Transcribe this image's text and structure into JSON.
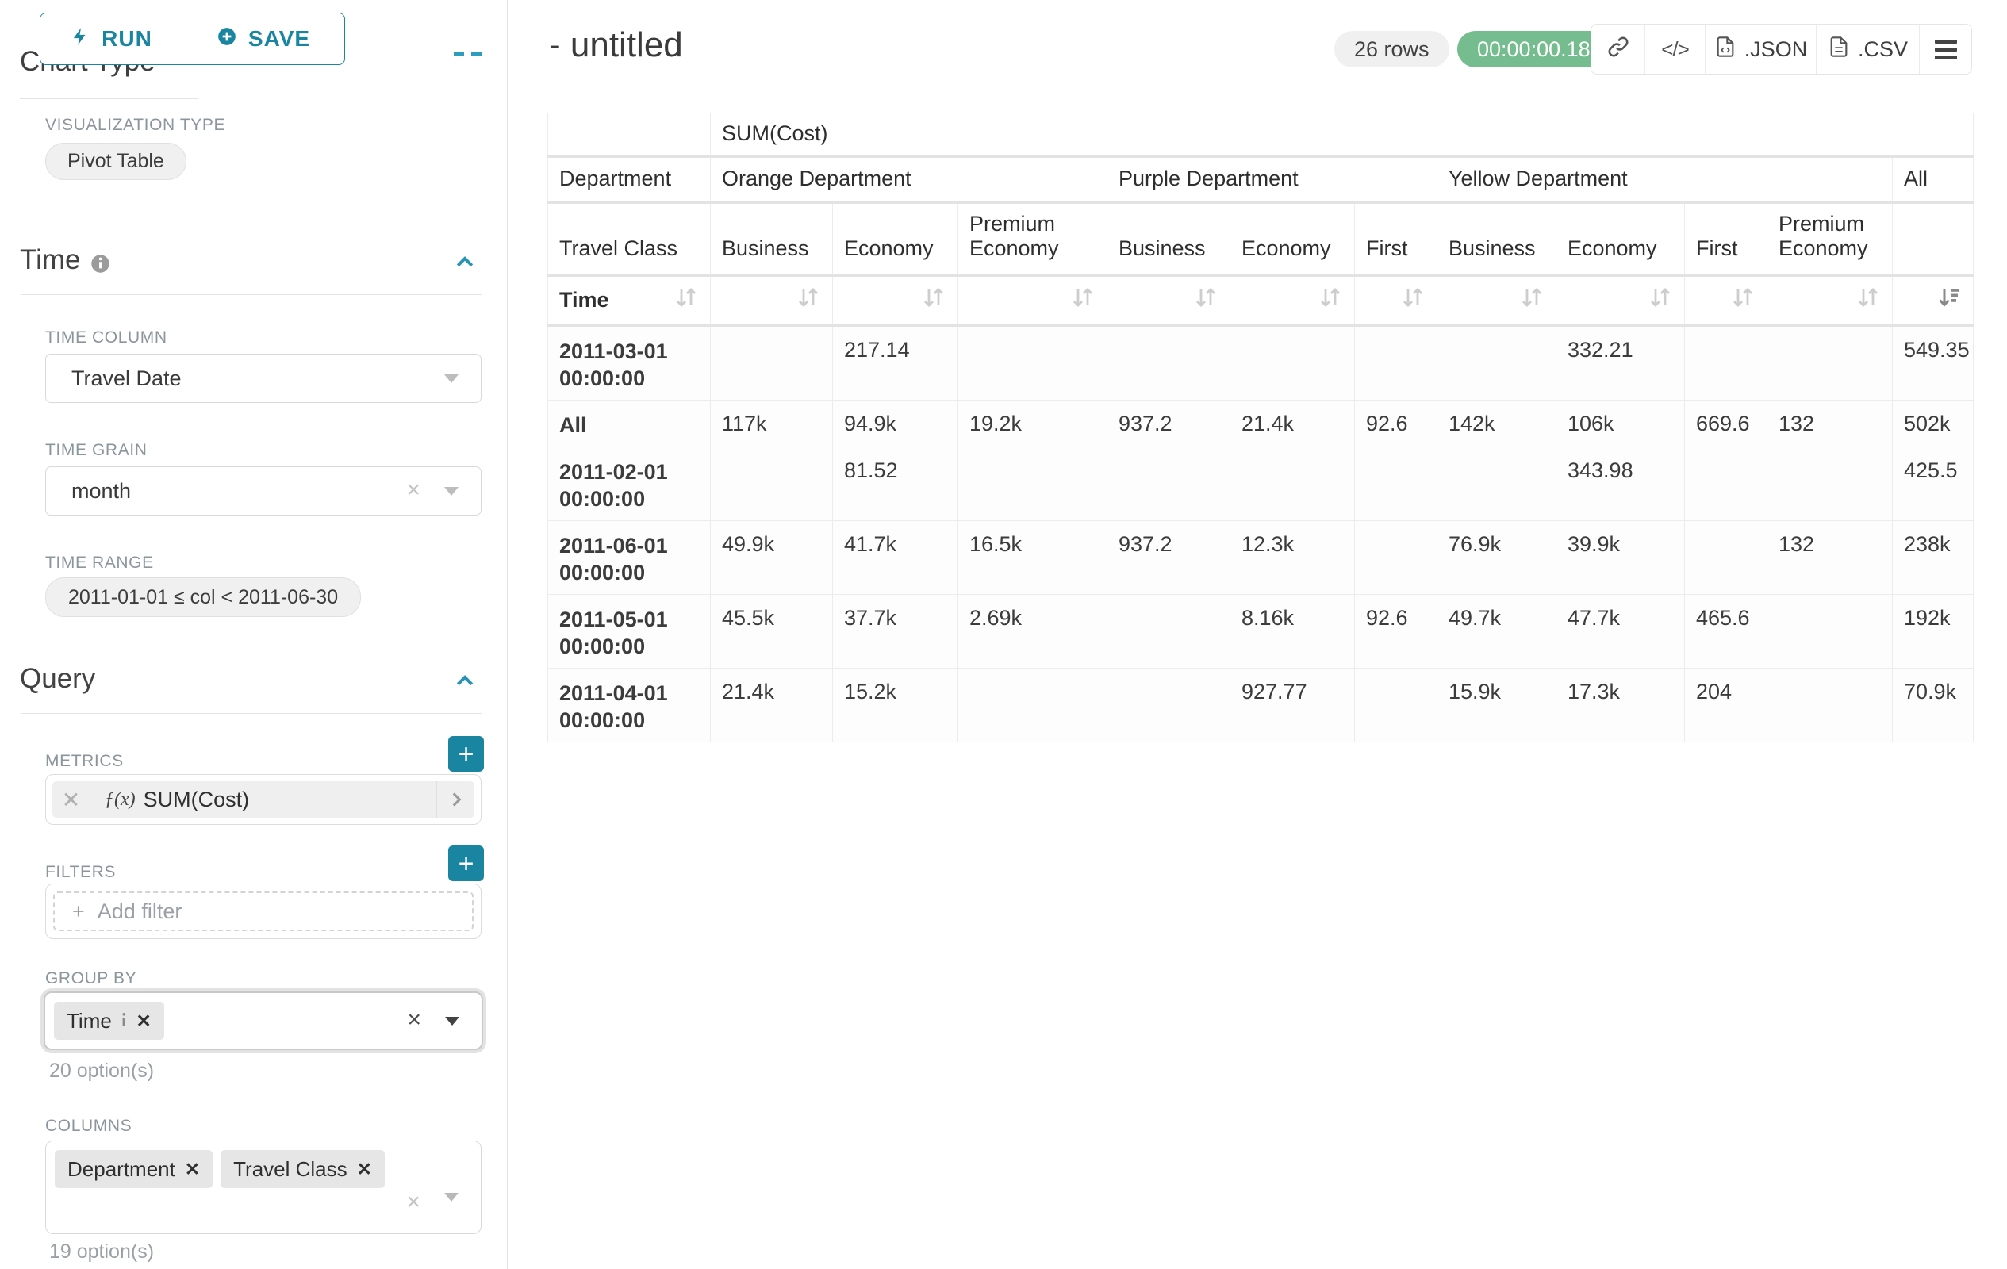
{
  "colors": {
    "accent_teal": "#1a85a0",
    "timer_green": "#75bd8e"
  },
  "sidebar": {
    "run_button": "RUN",
    "save_button": "SAVE",
    "chart_type_heading": "Chart Type",
    "visualization_type_label": "VISUALIZATION TYPE",
    "visualization_type_value": "Pivot Table",
    "time": {
      "heading": "Time",
      "time_column_label": "TIME COLUMN",
      "time_column_value": "Travel Date",
      "time_grain_label": "TIME GRAIN",
      "time_grain_value": "month",
      "time_range_label": "TIME RANGE",
      "time_range_value": "2011-01-01 ≤ col < 2011-06-30"
    },
    "query": {
      "heading": "Query",
      "metrics_label": "METRICS",
      "metric_fx": "ƒ(x)",
      "metric_value": "SUM(Cost)",
      "filters_label": "FILTERS",
      "add_filter_placeholder": "Add filter",
      "group_by_label": "GROUP BY",
      "group_by_tags": [
        "Time"
      ],
      "group_by_options_hint": "20 option(s)",
      "columns_label": "COLUMNS",
      "columns_tags": [
        "Department",
        "Travel Class"
      ],
      "columns_options_hint": "19 option(s)"
    }
  },
  "header": {
    "title": "- untitled",
    "row_count_badge": "26 rows",
    "timer_badge": "00:00:00.18",
    "json_export_label": ".JSON",
    "csv_export_label": ".CSV"
  },
  "pivot_table": {
    "metric_header": "SUM(Cost)",
    "row_dimension": "Department",
    "row_subdimension": "Travel Class",
    "time_label": "Time",
    "col_groups": [
      {
        "label": "Orange Department",
        "children": [
          "Business",
          "Economy",
          "Premium Economy"
        ]
      },
      {
        "label": "Purple Department",
        "children": [
          "Business",
          "Economy",
          "First"
        ]
      },
      {
        "label": "Yellow Department",
        "children": [
          "Business",
          "Economy",
          "First",
          "Premium Economy"
        ]
      },
      {
        "label": "All",
        "children": [
          ""
        ]
      }
    ],
    "sorted_column_index": 10,
    "rows": [
      {
        "label": "2011-03-01 00:00:00",
        "values": [
          "",
          "217.14",
          "",
          "",
          "",
          "",
          "",
          "332.21",
          "",
          "",
          "549.35"
        ]
      },
      {
        "label": "All",
        "values": [
          "117k",
          "94.9k",
          "19.2k",
          "937.2",
          "21.4k",
          "92.6",
          "142k",
          "106k",
          "669.6",
          "132",
          "502k"
        ]
      },
      {
        "label": "2011-02-01 00:00:00",
        "values": [
          "",
          "81.52",
          "",
          "",
          "",
          "",
          "",
          "343.98",
          "",
          "",
          "425.5"
        ]
      },
      {
        "label": "2011-06-01 00:00:00",
        "values": [
          "49.9k",
          "41.7k",
          "16.5k",
          "937.2",
          "12.3k",
          "",
          "76.9k",
          "39.9k",
          "",
          "132",
          "238k"
        ]
      },
      {
        "label": "2011-05-01 00:00:00",
        "values": [
          "45.5k",
          "37.7k",
          "2.69k",
          "",
          "8.16k",
          "92.6",
          "49.7k",
          "47.7k",
          "465.6",
          "",
          "192k"
        ]
      },
      {
        "label": "2011-04-01 00:00:00",
        "values": [
          "21.4k",
          "15.2k",
          "",
          "",
          "927.77",
          "",
          "15.9k",
          "17.3k",
          "204",
          "",
          "70.9k"
        ]
      }
    ]
  }
}
